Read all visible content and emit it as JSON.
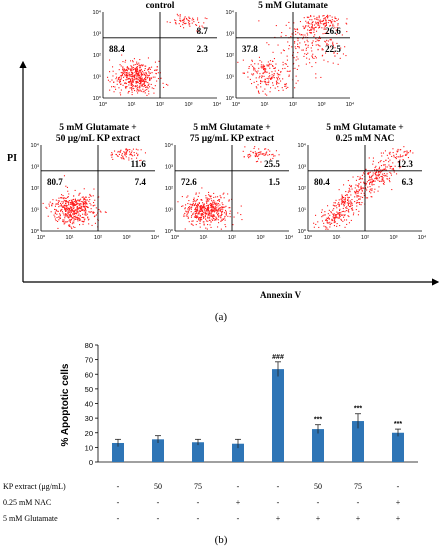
{
  "panel_a": {
    "label": "(a)",
    "y_axis_label": "PI",
    "x_axis_label": "Annexin V",
    "tick_labels": [
      "10⁰",
      "10¹",
      "10²",
      "10³",
      "10⁴"
    ],
    "plots": [
      {
        "title_lines": [
          "control"
        ],
        "upper_left": "",
        "upper_right": "8.7",
        "lower_left": "88.4",
        "lower_right": "2.3",
        "population": "live"
      },
      {
        "title_lines": [
          "5 mM Glutamate"
        ],
        "upper_left": "",
        "upper_right": "26.6",
        "lower_left": "37.8",
        "lower_right": "22.5",
        "population": "apoptotic"
      },
      {
        "title_lines": [
          "5 mM Glutamate +",
          "50 μg/mL KP extract"
        ],
        "upper_left": "",
        "upper_right": "11.6",
        "lower_left": "80.7",
        "lower_right": "7.4",
        "population": "live"
      },
      {
        "title_lines": [
          "5 mM Glutamate +",
          "75 μg/mL KP extract"
        ],
        "upper_left": "",
        "upper_right": "25.5",
        "lower_left": "72.6",
        "lower_right": "1.5",
        "population": "live"
      },
      {
        "title_lines": [
          "5 mM Glutamate +",
          "0.25 mM  NAC"
        ],
        "upper_left": "",
        "upper_right": "12.3",
        "lower_left": "80.4",
        "lower_right": "6.3",
        "population": "diagonal"
      }
    ],
    "dot_color": "#ff1a1a"
  },
  "panel_b": {
    "label": "(b)"
  },
  "chart_data": {
    "type": "bar",
    "ylabel": "% Apoptotic cells",
    "xlabel": "",
    "ylim": [
      0,
      80
    ],
    "yticks": [
      0,
      10,
      20,
      30,
      40,
      50,
      60,
      70,
      80
    ],
    "bar_color": "#2e75b6",
    "values": [
      13,
      15.5,
      13.5,
      12.5,
      63.5,
      22.5,
      28,
      20
    ],
    "errors": [
      2.5,
      2.5,
      2,
      3,
      5,
      3,
      5,
      2.5
    ],
    "significance": [
      "",
      "",
      "",
      "",
      "###",
      "***",
      "***",
      "***"
    ],
    "treatment_rows": [
      {
        "label": "KP extract (μg/mL)",
        "cells": [
          "-",
          "50",
          "75",
          "-",
          "-",
          "50",
          "75",
          "-"
        ]
      },
      {
        "label": "0.25 mM NAC",
        "cells": [
          "-",
          "-",
          "-",
          "+",
          "-",
          "-",
          "-",
          "+"
        ]
      },
      {
        "label": "5 mM Glutamate",
        "cells": [
          "-",
          "-",
          "-",
          "-",
          "+",
          "+",
          "+",
          "+"
        ]
      }
    ]
  }
}
